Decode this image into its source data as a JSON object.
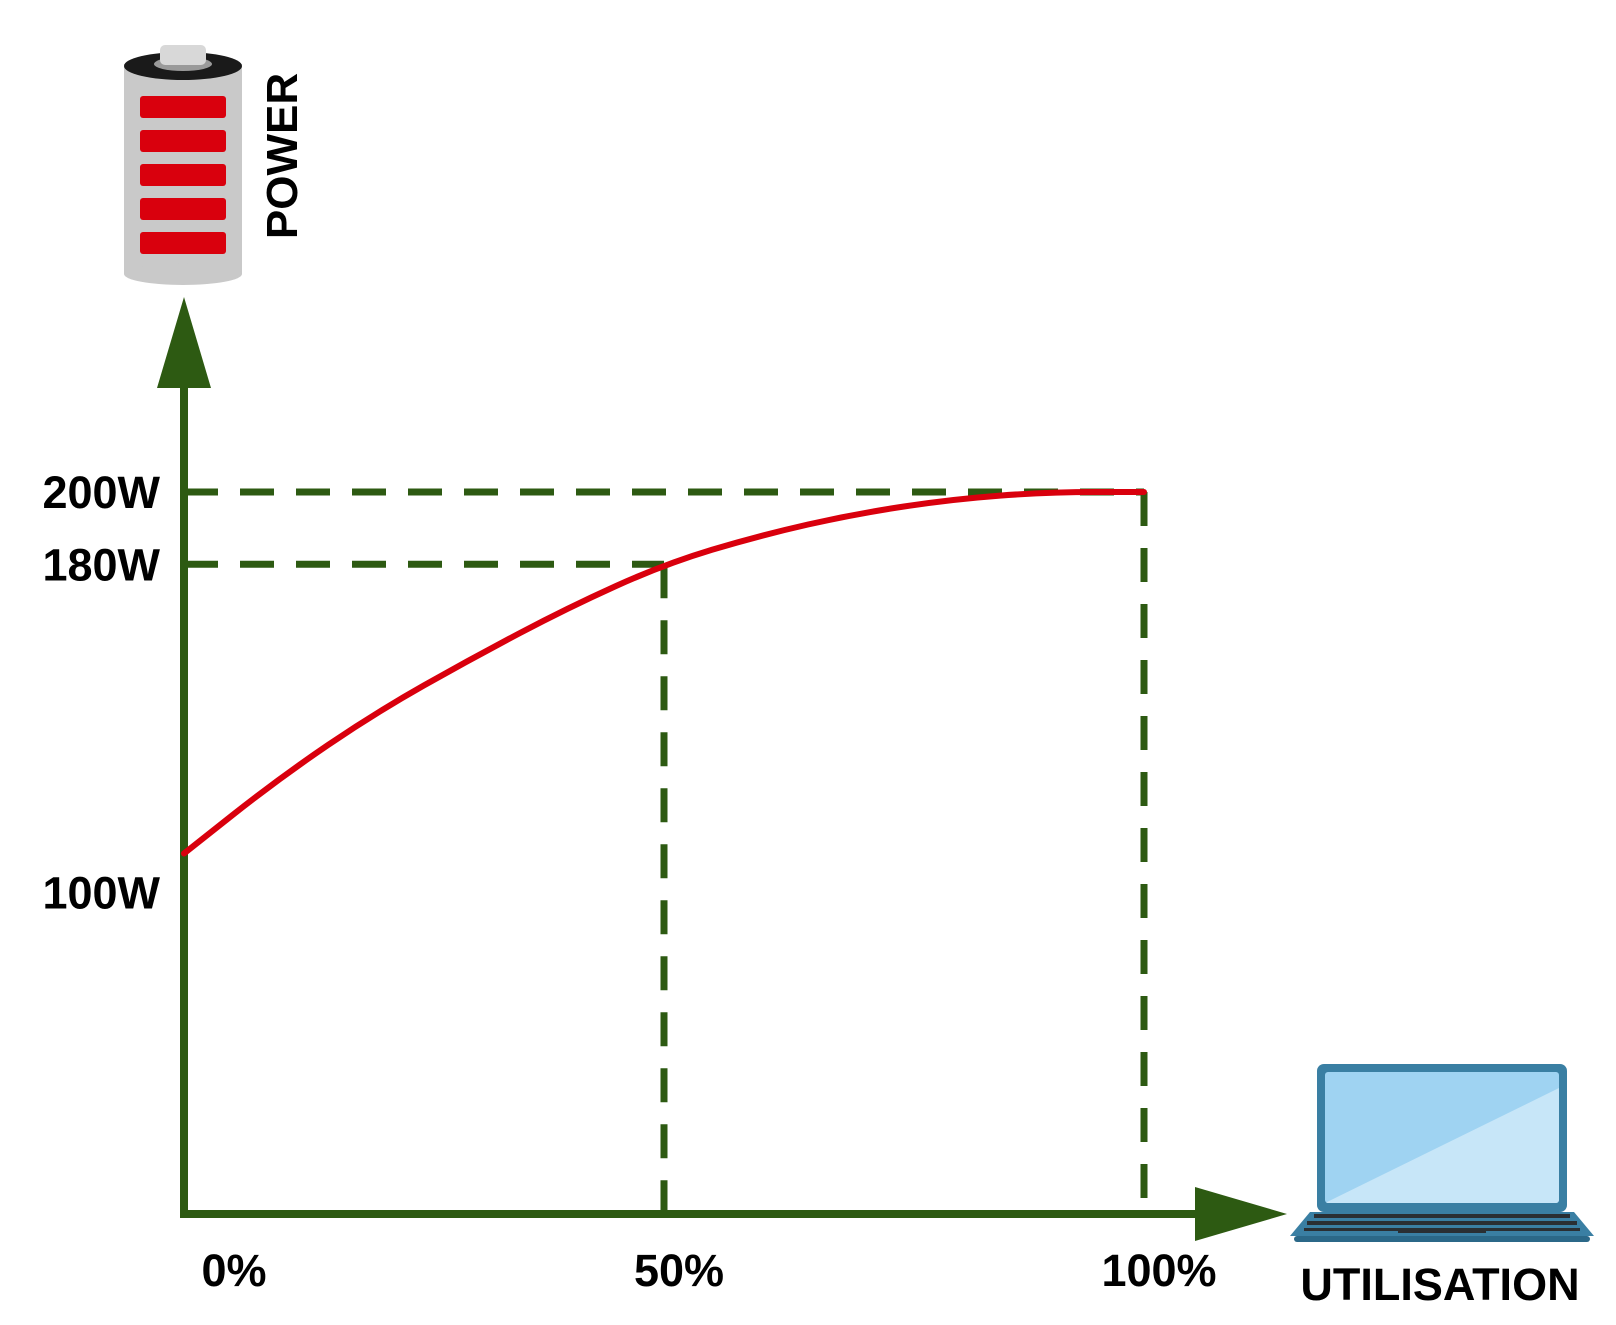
{
  "chart_data": {
    "type": "line",
    "title": "",
    "xlabel": "UTILISATION",
    "ylabel": "POWER",
    "x_ticks": [
      {
        "value": 0,
        "label": "0%"
      },
      {
        "value": 50,
        "label": "50%"
      },
      {
        "value": 100,
        "label": "100%"
      }
    ],
    "y_ticks": [
      {
        "value": 100,
        "label": "100W"
      },
      {
        "value": 180,
        "label": "180W"
      },
      {
        "value": 200,
        "label": "200W"
      }
    ],
    "series": [
      {
        "x": [
          0,
          10,
          20,
          30,
          40,
          50,
          60,
          70,
          80,
          90,
          100
        ],
        "y": [
          100,
          121,
          139,
          154,
          168,
          180,
          188,
          194,
          198,
          200,
          200
        ]
      }
    ],
    "reference_lines": [
      {
        "x": 50,
        "y": 180
      },
      {
        "x": 100,
        "y": 200
      }
    ],
    "grid": false,
    "legend": "none"
  },
  "colors": {
    "axis": "#2d5a12",
    "curve": "#d9000d",
    "battery_fill": "#d9000d",
    "battery_body": "#c9c9c9",
    "laptop_frame": "#3a7fa3",
    "laptop_screen": "#9fd3f2"
  },
  "icons": {
    "y_axis_icon": "battery-icon",
    "x_axis_icon": "laptop-icon"
  }
}
